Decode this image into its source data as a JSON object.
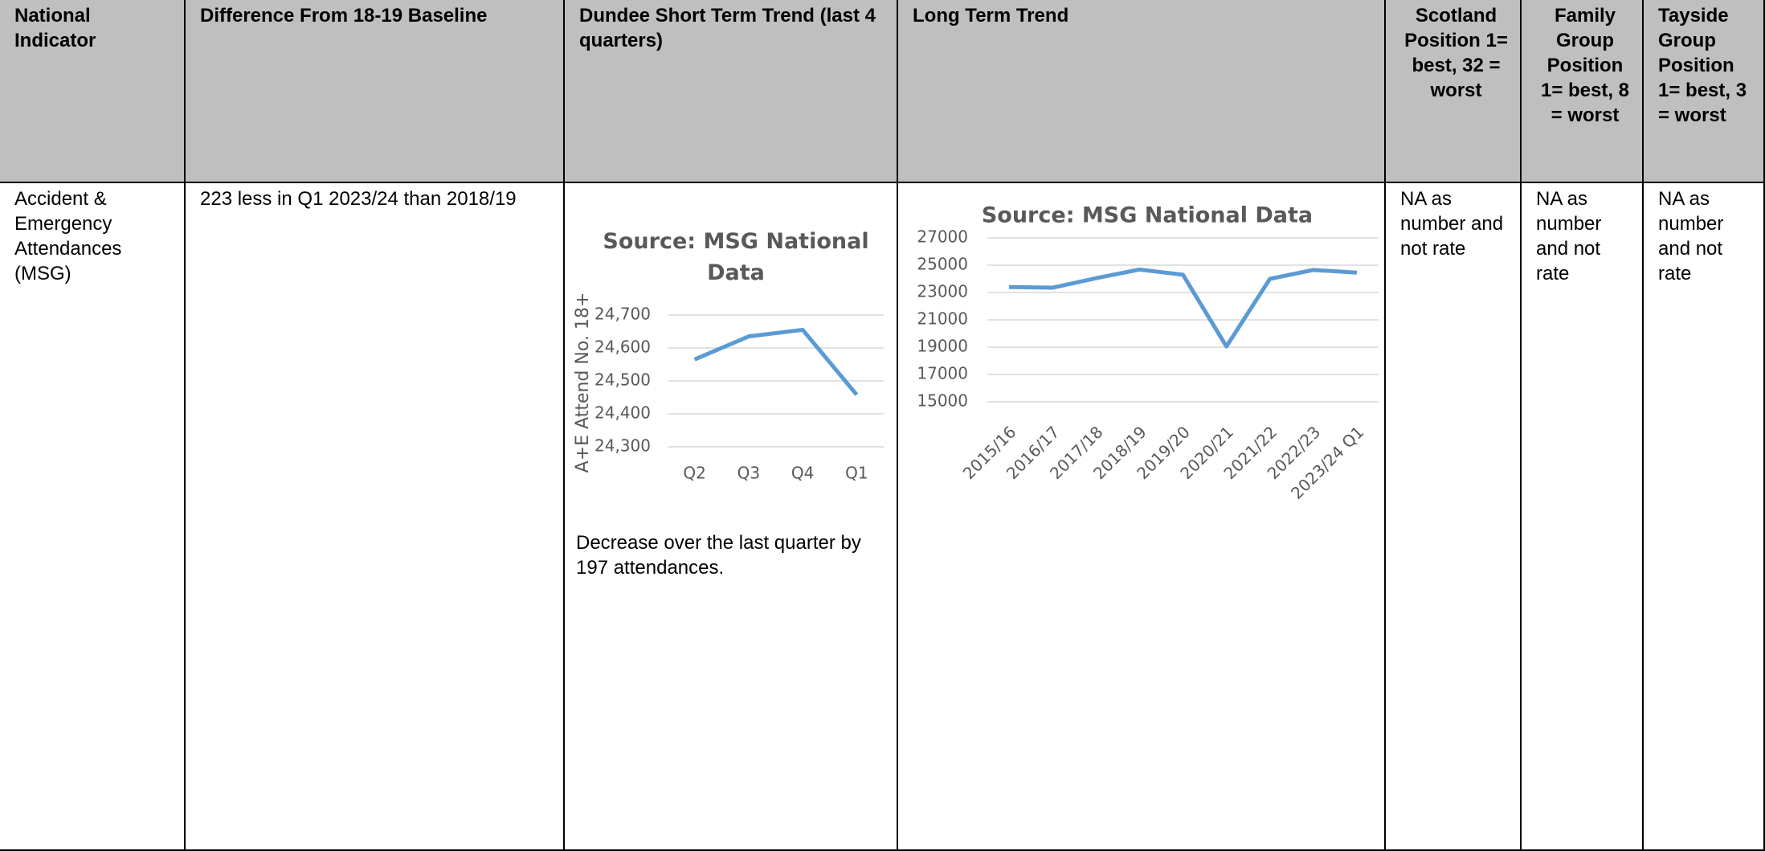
{
  "table": {
    "headers": [
      "National Indicator",
      "Difference From 18-19 Baseline",
      "Dundee Short Term Trend (last 4 quarters)",
      "Long Term Trend",
      "Scotland Position 1= best, 32 = worst",
      "Family Group Position 1= best, 8 = worst",
      "Tayside Group Position 1= best, 3 = worst"
    ],
    "rows": [
      [
        "Accident & Emergency Attendances (MSG)",
        "223 less  in Q1 2023/24 than 2018/19",
        "Decrease over the last quarter by 197 attendances.",
        "",
        "NA as number and not rate",
        "NA as number and not rate",
        "NA as number and not rate"
      ]
    ]
  },
  "chart_data": [
    {
      "type": "line",
      "title": "Source: MSG National Data",
      "y_label": "A+E Attend No. 18+",
      "categories": [
        "Q2",
        "Q3",
        "Q4",
        "Q1"
      ],
      "series": [
        {
          "name": "A+E Attend No. 18+",
          "color": "#5b9bd5",
          "values": [
            24565,
            24635,
            24655,
            24458
          ]
        }
      ],
      "ylim": [
        24300,
        24700
      ],
      "yticks": [
        {
          "value": 24300,
          "label": "24,300"
        },
        {
          "value": 24400,
          "label": "24,400"
        },
        {
          "value": 24500,
          "label": "24,500"
        },
        {
          "value": 24600,
          "label": "24,600"
        },
        {
          "value": 24700,
          "label": "24,700"
        }
      ],
      "grid": true
    },
    {
      "type": "line",
      "title": "Source: MSG National Data",
      "categories": [
        "2015/16",
        "2016/17",
        "2017/18",
        "2018/19",
        "2019/20",
        "2020/21",
        "2021/22",
        "2022/23",
        "2023/24 Q1"
      ],
      "series": [
        {
          "color": "#5b9bd5",
          "values": [
            23400,
            23350,
            24050,
            24681,
            24300,
            19050,
            24000,
            24650,
            24458
          ]
        }
      ],
      "ylim": [
        15000,
        27000
      ],
      "yticks": [
        15000,
        17000,
        19000,
        21000,
        23000,
        25000,
        27000
      ],
      "grid": true
    }
  ]
}
